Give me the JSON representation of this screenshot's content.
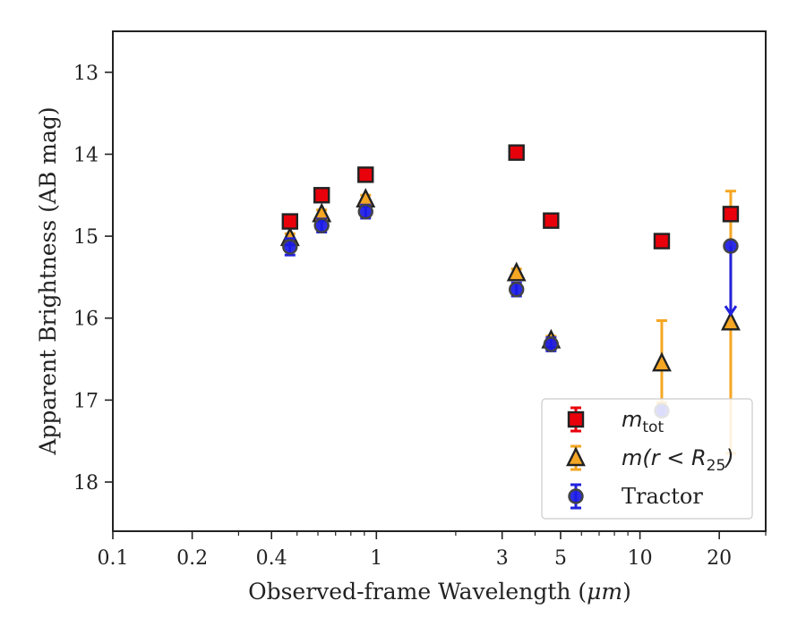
{
  "chart_data": {
    "type": "scatter",
    "xlabel_prefix": "Observed-frame Wavelength (",
    "xlabel_unit": "μm",
    "xlabel_suffix": ")",
    "ylabel": "Apparent Brightness (AB mag)",
    "x_scale": "log",
    "xlim": [
      0.1,
      30
    ],
    "ylim": [
      18.6,
      12.5
    ],
    "y_inverted": true,
    "grid": false,
    "legend_position": "lower-right",
    "x_ticks": [
      {
        "value": 0.1,
        "label": "0.1"
      },
      {
        "value": 0.2,
        "label": "0.2"
      },
      {
        "value": 0.4,
        "label": "0.4"
      },
      {
        "value": 1,
        "label": "1"
      },
      {
        "value": 3,
        "label": "3"
      },
      {
        "value": 5,
        "label": "5"
      },
      {
        "value": 10,
        "label": "10"
      },
      {
        "value": 20,
        "label": "20"
      }
    ],
    "x_minor_ticks": [
      0.3,
      0.5,
      0.6,
      0.7,
      0.8,
      0.9,
      2,
      4,
      6,
      7,
      8,
      9,
      30
    ],
    "y_ticks": [
      {
        "value": 13,
        "label": "13"
      },
      {
        "value": 14,
        "label": "14"
      },
      {
        "value": 15,
        "label": "15"
      },
      {
        "value": 16,
        "label": "16"
      },
      {
        "value": 17,
        "label": "17"
      },
      {
        "value": 18,
        "label": "18"
      }
    ],
    "series": [
      {
        "name": "m_tot",
        "legend_main": "m",
        "legend_sub": "tot",
        "marker": "square",
        "color": "#e8000b",
        "edge": "#222222",
        "error_color": "#e8000b",
        "points": [
          {
            "x": 0.47,
            "y": 14.82,
            "err": 0.05
          },
          {
            "x": 0.62,
            "y": 14.5,
            "err": 0.05
          },
          {
            "x": 0.91,
            "y": 14.25,
            "err": 0.05
          },
          {
            "x": 3.4,
            "y": 13.98,
            "err": 0.05
          },
          {
            "x": 4.6,
            "y": 14.81,
            "err": 0.05
          },
          {
            "x": 12.1,
            "y": 15.06,
            "err": 0.05
          },
          {
            "x": 22.1,
            "y": 14.73,
            "err": 0.05
          }
        ]
      },
      {
        "name": "m(r < R_25)",
        "legend_main": "m(r < R",
        "legend_sub": "25",
        "legend_tail": ")",
        "marker": "triangle",
        "color": "#f5a623",
        "edge": "#222222",
        "error_color": "#f5a623",
        "points": [
          {
            "x": 0.47,
            "y": 15.02,
            "err": 0.05
          },
          {
            "x": 0.62,
            "y": 14.73,
            "err": 0.05
          },
          {
            "x": 0.91,
            "y": 14.55,
            "err": 0.05
          },
          {
            "x": 3.4,
            "y": 15.45,
            "err": 0.05
          },
          {
            "x": 4.6,
            "y": 16.27,
            "err": 0.05
          },
          {
            "x": 12.1,
            "y": 16.55,
            "err_low": 0.52,
            "err_high": 0.48
          },
          {
            "x": 22.1,
            "y": 16.05,
            "err_low": 1.6,
            "err_high": 1.6
          }
        ]
      },
      {
        "name": "Tractor",
        "legend_main": "Tractor",
        "marker": "circle",
        "color": "#1a1ae6",
        "edge": "#444444",
        "error_color": "#2222dd",
        "points": [
          {
            "x": 0.47,
            "y": 15.13,
            "err": 0.1
          },
          {
            "x": 0.62,
            "y": 14.87,
            "err": 0.08
          },
          {
            "x": 0.91,
            "y": 14.7,
            "err": 0.08
          },
          {
            "x": 3.4,
            "y": 15.65,
            "err": 0.08
          },
          {
            "x": 4.6,
            "y": 16.32,
            "err": 0.08
          },
          {
            "x": 12.1,
            "y": 17.13,
            "err": 0.05
          },
          {
            "x": 22.1,
            "y": 15.12,
            "upper_limit_to": 15.95
          }
        ]
      }
    ]
  }
}
